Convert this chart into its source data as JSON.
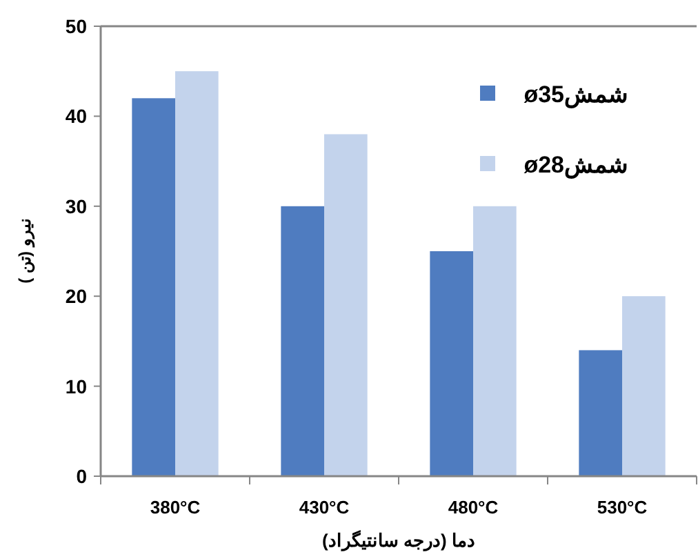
{
  "chart_data": {
    "type": "bar",
    "xlabel": "دما (درجه سانتیگراد)",
    "ylabel": "نیرو (تن )",
    "categories": [
      "380°C",
      "430°C",
      "480°C",
      "530°C"
    ],
    "series": [
      {
        "name": "شمشø35",
        "color": "#4f7cc0",
        "values": [
          42,
          30,
          25,
          14
        ]
      },
      {
        "name": "شمشø28",
        "color": "#c3d3ec",
        "values": [
          45,
          38,
          30,
          20
        ]
      }
    ],
    "ylim": [
      0,
      50
    ],
    "yticks": [
      0,
      10,
      20,
      30,
      40,
      50
    ],
    "grid": false,
    "legend": "top right"
  }
}
